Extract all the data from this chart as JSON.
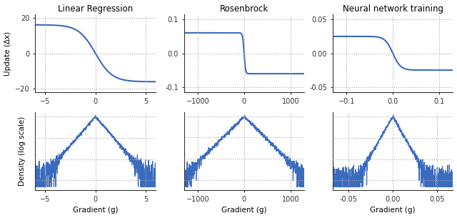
{
  "titles": [
    "Linear Regression",
    "Rosenbrock",
    "Neural network training"
  ],
  "update_ylabel": "Update (Δx)",
  "density_ylabel": "Density (log scale)",
  "xlabel": "Gradient (g)",
  "line_color": "#3a6bbf",
  "line_width": 1.5,
  "background_color": "#ffffff",
  "col1": {
    "xlim": [
      -6,
      6
    ],
    "xticks": [
      -5,
      0,
      5
    ],
    "update_ylim": [
      -22,
      22
    ],
    "update_yticks": [
      -20,
      0,
      20
    ],
    "density_xlim": [
      -6,
      6
    ],
    "density_xticks": [
      -5,
      0,
      5
    ]
  },
  "col2": {
    "xlim": [
      -1300,
      1300
    ],
    "xticks": [
      -1000,
      0,
      1000
    ],
    "update_ylim": [
      -0.115,
      0.115
    ],
    "update_yticks": [
      -0.1,
      0.0,
      0.1
    ],
    "density_xlim": [
      -1300,
      1300
    ],
    "density_xticks": [
      -1000,
      0,
      1000
    ]
  },
  "col3": {
    "xlim": [
      -0.13,
      0.13
    ],
    "xticks": [
      -0.1,
      0.0,
      0.1
    ],
    "update_ylim": [
      -0.058,
      0.058
    ],
    "update_yticks": [
      -0.05,
      0.0,
      0.05
    ],
    "density_xlim": [
      -0.068,
      0.068
    ],
    "density_xticks": [
      -0.05,
      0.0,
      0.05
    ]
  }
}
